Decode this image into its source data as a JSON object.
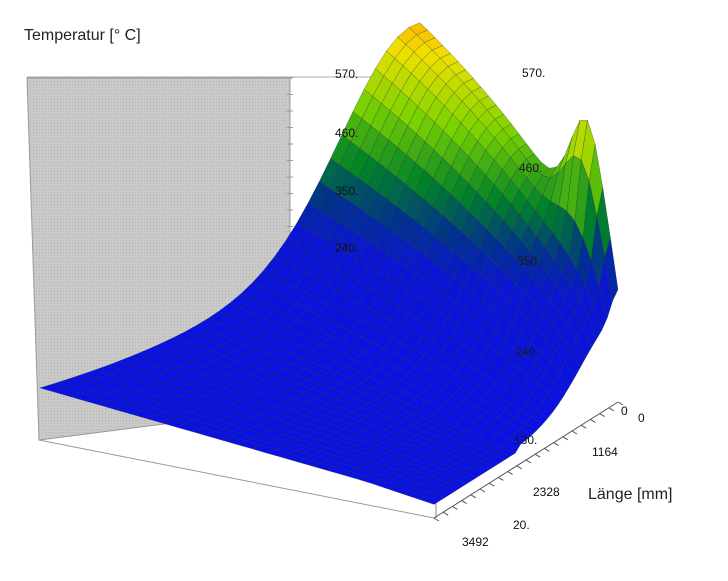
{
  "chart_data": {
    "type": "surface",
    "ylabel": "Temperatur [° C]",
    "xlabel": "Länge [mm]",
    "z_ticks": [
      "20.",
      "130.",
      "240.",
      "350.",
      "460.",
      "570."
    ],
    "x_ticks": [
      "0",
      "1164",
      "2328",
      "3492"
    ],
    "depth_ticks": [
      "0"
    ],
    "zlim": [
      20,
      570
    ],
    "xlim": [
      0,
      3492
    ],
    "colormap": [
      "#0000ff",
      "#00c000",
      "#ffff00",
      "#ff0000"
    ],
    "back_wall_color": "#c8c8c8",
    "grid": true
  }
}
